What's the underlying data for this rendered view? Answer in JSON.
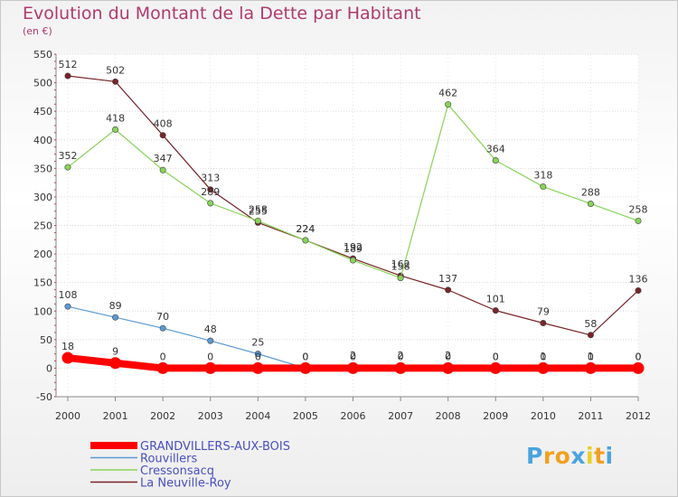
{
  "chart_data": {
    "type": "line",
    "title": "Evolution du Montant de la Dette par Habitant",
    "subtitle": "(en €)",
    "x": [
      "2000",
      "2001",
      "2002",
      "2003",
      "2004",
      "2005",
      "2006",
      "2007",
      "2008",
      "2009",
      "2010",
      "2011",
      "2012"
    ],
    "ylim": [
      -50,
      550
    ],
    "yticks": [
      -50,
      0,
      50,
      100,
      150,
      200,
      250,
      300,
      350,
      400,
      450,
      500,
      550
    ],
    "grid": "horizontal",
    "legend_position": "bottom-left",
    "series": [
      {
        "name": "GRANDVILLERS-AUX-BOIS",
        "color": "#ff0000",
        "values": [
          18,
          9,
          0,
          0,
          0,
          0,
          0,
          0,
          0,
          0,
          0,
          0,
          0
        ]
      },
      {
        "name": "Rouvillers",
        "color": "#5a9ad4",
        "values": [
          108,
          89,
          70,
          48,
          25,
          0,
          2,
          2,
          2,
          0,
          1,
          1,
          0
        ]
      },
      {
        "name": "Cressonsacq",
        "color": "#88d458",
        "values": [
          352,
          418,
          347,
          289,
          258,
          224,
          189,
          158,
          462,
          364,
          318,
          288,
          258
        ]
      },
      {
        "name": "La Neuville-Roy",
        "color": "#7a2428",
        "values": [
          512,
          502,
          408,
          313,
          255,
          224,
          192,
          162,
          137,
          101,
          79,
          58,
          136
        ]
      }
    ]
  },
  "logo": {
    "text": "Proxiti",
    "colors": [
      "#4aa3df",
      "#f0a020",
      "#f0a020",
      "#4aa3df",
      "#e8d020",
      "#f0a020",
      "#4aa3df"
    ]
  }
}
